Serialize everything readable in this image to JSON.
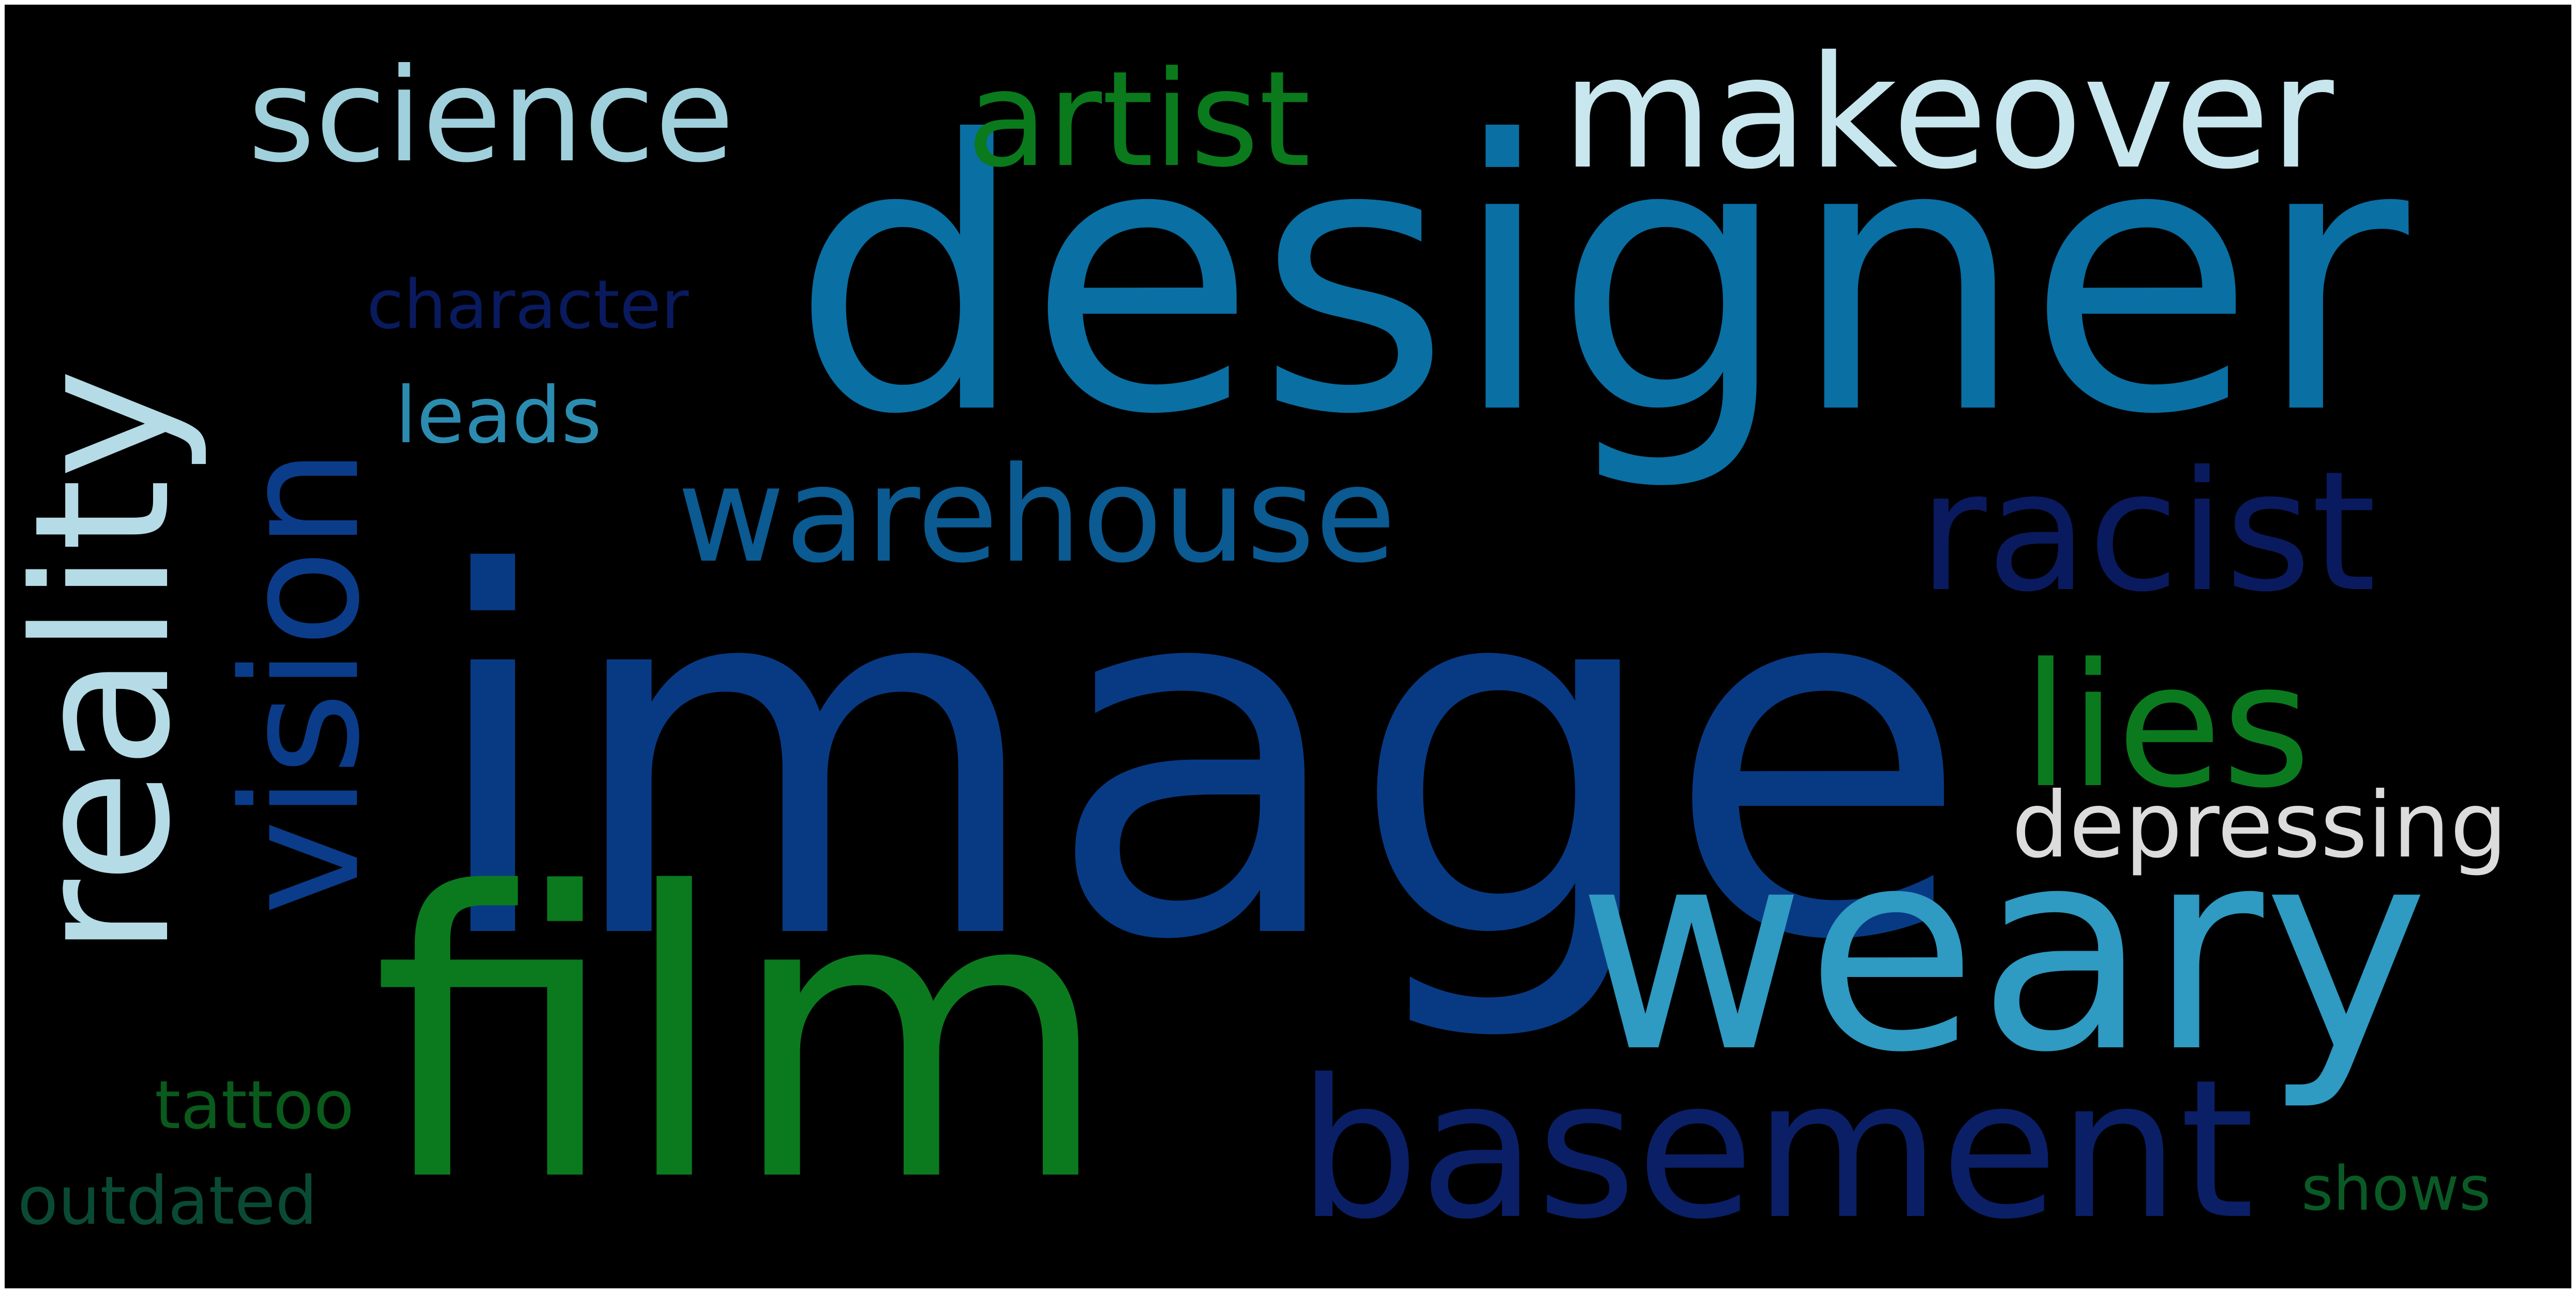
{
  "wordcloud": {
    "words": [
      {
        "text": "image",
        "color": "#083a84"
      },
      {
        "text": "designer",
        "color": "#0a6fa3"
      },
      {
        "text": "film",
        "color": "#0b7a1e"
      },
      {
        "text": "weary",
        "color": "#2f9ac2"
      },
      {
        "text": "reality",
        "color": "#b5dbe6"
      },
      {
        "text": "makeover",
        "color": "#c8e6ee"
      },
      {
        "text": "science",
        "color": "#9fd0dc"
      },
      {
        "text": "artist",
        "color": "#0a7a1c"
      },
      {
        "text": "vision",
        "color": "#0b3c8a"
      },
      {
        "text": "warehouse",
        "color": "#0b5a91"
      },
      {
        "text": "basement",
        "color": "#0a1f66"
      },
      {
        "text": "racist",
        "color": "#0a1a5e"
      },
      {
        "text": "lies",
        "color": "#0b7a1e"
      },
      {
        "text": "depressing",
        "color": "#dcdcdc"
      },
      {
        "text": "character",
        "color": "#0a1a5e"
      },
      {
        "text": "leads",
        "color": "#2b8cb0"
      },
      {
        "text": "tattoo",
        "color": "#0a5a1c"
      },
      {
        "text": "outdated",
        "color": "#0a4a35"
      },
      {
        "text": "shows",
        "color": "#0a5a25"
      }
    ]
  }
}
